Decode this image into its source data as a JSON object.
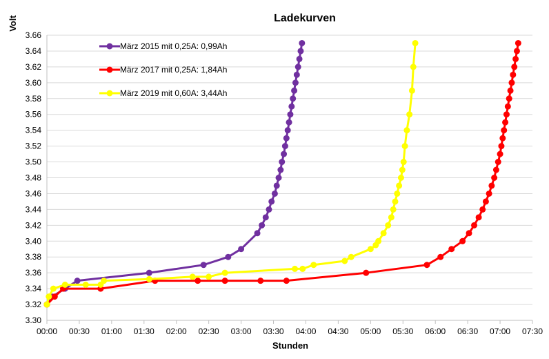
{
  "chart_data": {
    "type": "line",
    "title": "Ladekurven",
    "xlabel": "Stunden",
    "ylabel": "Volt",
    "x_unit": "hours",
    "xlim": [
      0,
      7.5
    ],
    "ylim": [
      3.3,
      3.66
    ],
    "x_ticks": [
      "00:00",
      "00:30",
      "01:00",
      "01:30",
      "02:00",
      "02:30",
      "03:00",
      "03:30",
      "04:00",
      "04:30",
      "05:00",
      "05:30",
      "06:00",
      "06:30",
      "07:00",
      "07:30"
    ],
    "y_ticks": [
      "3.30",
      "3.32",
      "3.34",
      "3.36",
      "3.38",
      "3.40",
      "3.42",
      "3.44",
      "3.46",
      "3.48",
      "3.50",
      "3.52",
      "3.54",
      "3.56",
      "3.58",
      "3.60",
      "3.62",
      "3.64",
      "3.66"
    ],
    "grid": "horizontal",
    "legend_position": "top-left",
    "series": [
      {
        "name": "März 2015 mit 0,25A: 0,99Ah",
        "color": "#7030A0",
        "points": [
          [
            0.0,
            3.32
          ],
          [
            0.08,
            3.33
          ],
          [
            0.28,
            3.34
          ],
          [
            0.47,
            3.35
          ],
          [
            1.58,
            3.36
          ],
          [
            2.42,
            3.37
          ],
          [
            2.8,
            3.38
          ],
          [
            3.0,
            3.39
          ],
          [
            3.25,
            3.41
          ],
          [
            3.32,
            3.42
          ],
          [
            3.38,
            3.43
          ],
          [
            3.43,
            3.44
          ],
          [
            3.47,
            3.45
          ],
          [
            3.52,
            3.46
          ],
          [
            3.55,
            3.47
          ],
          [
            3.58,
            3.48
          ],
          [
            3.61,
            3.49
          ],
          [
            3.63,
            3.5
          ],
          [
            3.66,
            3.51
          ],
          [
            3.68,
            3.52
          ],
          [
            3.7,
            3.53
          ],
          [
            3.72,
            3.54
          ],
          [
            3.74,
            3.55
          ],
          [
            3.76,
            3.56
          ],
          [
            3.78,
            3.57
          ],
          [
            3.8,
            3.58
          ],
          [
            3.82,
            3.59
          ],
          [
            3.84,
            3.6
          ],
          [
            3.86,
            3.61
          ],
          [
            3.88,
            3.62
          ],
          [
            3.9,
            3.63
          ],
          [
            3.92,
            3.64
          ],
          [
            3.94,
            3.65
          ]
        ]
      },
      {
        "name": "März 2017 mit 0,25A: 1,84Ah",
        "color": "#FF0000",
        "points": [
          [
            0.0,
            3.32
          ],
          [
            0.12,
            3.33
          ],
          [
            0.25,
            3.34
          ],
          [
            0.83,
            3.34
          ],
          [
            1.67,
            3.35
          ],
          [
            2.33,
            3.35
          ],
          [
            2.75,
            3.35
          ],
          [
            3.3,
            3.35
          ],
          [
            3.7,
            3.35
          ],
          [
            4.93,
            3.36
          ],
          [
            5.87,
            3.37
          ],
          [
            6.08,
            3.38
          ],
          [
            6.25,
            3.39
          ],
          [
            6.42,
            3.4
          ],
          [
            6.52,
            3.41
          ],
          [
            6.6,
            3.42
          ],
          [
            6.67,
            3.43
          ],
          [
            6.73,
            3.44
          ],
          [
            6.78,
            3.45
          ],
          [
            6.83,
            3.46
          ],
          [
            6.87,
            3.47
          ],
          [
            6.91,
            3.48
          ],
          [
            6.94,
            3.49
          ],
          [
            6.97,
            3.5
          ],
          [
            7.0,
            3.51
          ],
          [
            7.02,
            3.52
          ],
          [
            7.04,
            3.53
          ],
          [
            7.06,
            3.54
          ],
          [
            7.08,
            3.55
          ],
          [
            7.1,
            3.56
          ],
          [
            7.12,
            3.57
          ],
          [
            7.14,
            3.58
          ],
          [
            7.16,
            3.59
          ],
          [
            7.18,
            3.6
          ],
          [
            7.2,
            3.61
          ],
          [
            7.22,
            3.62
          ],
          [
            7.24,
            3.63
          ],
          [
            7.26,
            3.64
          ],
          [
            7.28,
            3.65
          ]
        ]
      },
      {
        "name": "März 2019 mit 0,60A: 3,44Ah",
        "color": "#FFFF00",
        "points": [
          [
            0.0,
            3.32
          ],
          [
            0.03,
            3.33
          ],
          [
            0.1,
            3.34
          ],
          [
            0.28,
            3.345
          ],
          [
            0.6,
            3.345
          ],
          [
            0.83,
            3.345
          ],
          [
            0.88,
            3.35
          ],
          [
            1.58,
            3.352
          ],
          [
            2.25,
            3.355
          ],
          [
            2.5,
            3.355
          ],
          [
            2.75,
            3.36
          ],
          [
            3.83,
            3.365
          ],
          [
            3.95,
            3.365
          ],
          [
            4.12,
            3.37
          ],
          [
            4.6,
            3.375
          ],
          [
            4.7,
            3.38
          ],
          [
            5.0,
            3.39
          ],
          [
            5.08,
            3.395
          ],
          [
            5.12,
            3.4
          ],
          [
            5.2,
            3.41
          ],
          [
            5.27,
            3.42
          ],
          [
            5.32,
            3.43
          ],
          [
            5.35,
            3.44
          ],
          [
            5.38,
            3.45
          ],
          [
            5.41,
            3.46
          ],
          [
            5.44,
            3.47
          ],
          [
            5.47,
            3.48
          ],
          [
            5.49,
            3.49
          ],
          [
            5.51,
            3.5
          ],
          [
            5.53,
            3.52
          ],
          [
            5.56,
            3.54
          ],
          [
            5.6,
            3.56
          ],
          [
            5.64,
            3.59
          ],
          [
            5.66,
            3.62
          ],
          [
            5.69,
            3.65
          ]
        ]
      }
    ]
  }
}
